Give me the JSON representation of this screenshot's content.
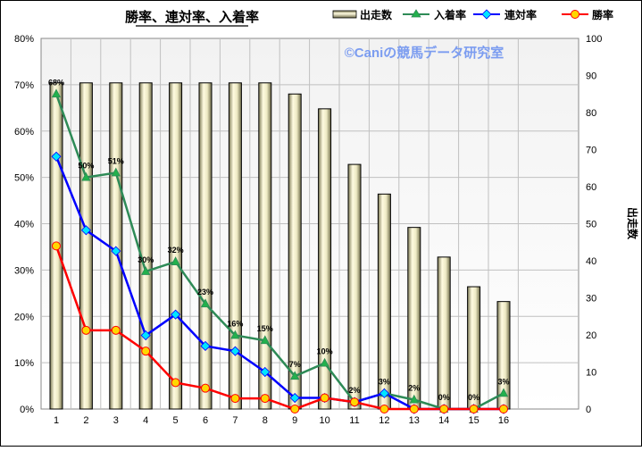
{
  "chart_data": {
    "type": "bar+line",
    "title": "勝率、連対率、入着率",
    "watermark": "©Caniの競馬データ研究室",
    "categories": [
      "1",
      "2",
      "3",
      "4",
      "5",
      "6",
      "7",
      "8",
      "9",
      "10",
      "11",
      "12",
      "13",
      "14",
      "15",
      "16"
    ],
    "y2label": "出走数",
    "ylim": [
      0,
      0.8
    ],
    "y2lim": [
      0,
      100
    ],
    "yticks": [
      "0%",
      "10%",
      "20%",
      "30%",
      "40%",
      "50%",
      "60%",
      "70%",
      "80%"
    ],
    "y2ticks": [
      "0",
      "10",
      "20",
      "30",
      "40",
      "50",
      "60",
      "70",
      "80",
      "90",
      "100"
    ],
    "grid": true,
    "legend_position": "top-right",
    "series": [
      {
        "name": "出走数",
        "kind": "bar",
        "axis": "right",
        "color": "#d8d4a8",
        "values": [
          88,
          88,
          88,
          88,
          88,
          88,
          88,
          88,
          85,
          81,
          66,
          58,
          49,
          41,
          33,
          29
        ]
      },
      {
        "name": "入着率",
        "kind": "line",
        "axis": "left",
        "color": "#2e8b57",
        "marker": "triangle",
        "marker_fill": "#22b14c",
        "values": [
          0.68,
          0.5,
          0.51,
          0.297,
          0.318,
          0.227,
          0.159,
          0.148,
          0.071,
          0.099,
          0.015,
          0.034,
          0.02,
          0.0,
          0.0,
          0.034
        ],
        "labels": [
          "68%",
          "50%",
          "51%",
          "30%",
          "32%",
          "23%",
          "16%",
          "15%",
          "7%",
          "10%",
          "2%",
          "3%",
          "2%",
          "0%",
          "0%",
          "3%"
        ]
      },
      {
        "name": "連対率",
        "kind": "line",
        "axis": "left",
        "color": "#0000ff",
        "marker": "diamond",
        "marker_fill": "#00e5ff",
        "values": [
          0.545,
          0.386,
          0.341,
          0.159,
          0.204,
          0.136,
          0.125,
          0.08,
          0.024,
          0.024,
          0.015,
          0.034,
          0.0,
          0.0,
          0.0,
          0.0
        ]
      },
      {
        "name": "勝率",
        "kind": "line",
        "axis": "left",
        "color": "#ff0000",
        "marker": "circle",
        "marker_fill": "#ffd700",
        "values": [
          0.352,
          0.17,
          0.17,
          0.125,
          0.057,
          0.045,
          0.023,
          0.023,
          0.0,
          0.024,
          0.015,
          0.0,
          0.0,
          0.0,
          0.0,
          0.0
        ]
      }
    ]
  }
}
